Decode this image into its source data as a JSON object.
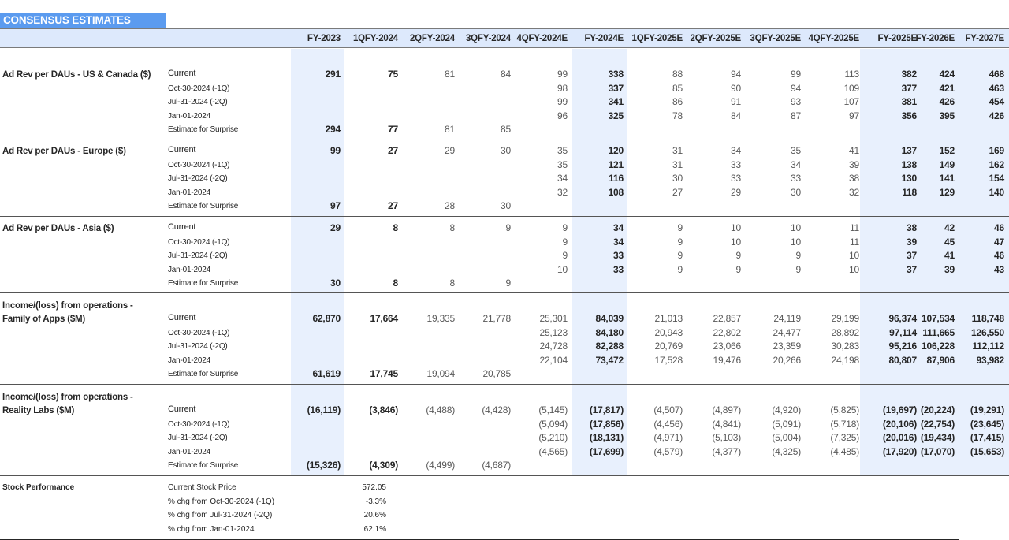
{
  "title": "CONSENSUS ESTIMATES",
  "columns": [
    "FY-2023",
    "1QFY-2024",
    "2QFY-2024",
    "3QFY-2024",
    "4QFY-2024E",
    "FY-2024E",
    "1QFY-2025E",
    "2QFY-2025E",
    "3QFY-2025E",
    "4QFY-2025E",
    "FY-2025E",
    "FY-2026E",
    "FY-2027E"
  ],
  "bold_columns": [
    0,
    1,
    5,
    10,
    11,
    12
  ],
  "row_labels": [
    "Current",
    "Oct-30-2024 (-1Q)",
    "Jul-31-2024 (-2Q)",
    "Jan-01-2024",
    "Estimate for Surprise"
  ],
  "sections": [
    {
      "title_lines": [
        "Ad Rev per DAUs - US & Canada ($)"
      ],
      "rows": [
        [
          "291",
          "75",
          "81",
          "84",
          "99",
          "338",
          "88",
          "94",
          "99",
          "113",
          "382",
          "424",
          "468"
        ],
        [
          "",
          "",
          "",
          "",
          "98",
          "337",
          "85",
          "90",
          "94",
          "109",
          "377",
          "421",
          "463"
        ],
        [
          "",
          "",
          "",
          "",
          "99",
          "341",
          "86",
          "91",
          "93",
          "107",
          "381",
          "426",
          "454"
        ],
        [
          "",
          "",
          "",
          "",
          "96",
          "325",
          "78",
          "84",
          "87",
          "97",
          "356",
          "395",
          "426"
        ],
        [
          "294",
          "77",
          "81",
          "85",
          "",
          "",
          "",
          "",
          "",
          "",
          "",
          "",
          ""
        ]
      ]
    },
    {
      "title_lines": [
        "Ad Rev per DAUs - Europe ($)"
      ],
      "rows": [
        [
          "99",
          "27",
          "29",
          "30",
          "35",
          "120",
          "31",
          "34",
          "35",
          "41",
          "137",
          "152",
          "169"
        ],
        [
          "",
          "",
          "",
          "",
          "35",
          "121",
          "31",
          "33",
          "34",
          "39",
          "138",
          "149",
          "162"
        ],
        [
          "",
          "",
          "",
          "",
          "34",
          "116",
          "30",
          "33",
          "33",
          "38",
          "130",
          "141",
          "154"
        ],
        [
          "",
          "",
          "",
          "",
          "32",
          "108",
          "27",
          "29",
          "30",
          "32",
          "118",
          "129",
          "140"
        ],
        [
          "97",
          "27",
          "28",
          "30",
          "",
          "",
          "",
          "",
          "",
          "",
          "",
          "",
          ""
        ]
      ]
    },
    {
      "title_lines": [
        "Ad Rev per DAUs - Asia ($)"
      ],
      "rows": [
        [
          "29",
          "8",
          "8",
          "9",
          "9",
          "34",
          "9",
          "10",
          "10",
          "11",
          "38",
          "42",
          "46"
        ],
        [
          "",
          "",
          "",
          "",
          "9",
          "34",
          "9",
          "10",
          "10",
          "11",
          "39",
          "45",
          "47"
        ],
        [
          "",
          "",
          "",
          "",
          "9",
          "33",
          "9",
          "9",
          "9",
          "10",
          "37",
          "41",
          "46"
        ],
        [
          "",
          "",
          "",
          "",
          "10",
          "33",
          "9",
          "9",
          "9",
          "10",
          "37",
          "39",
          "43"
        ],
        [
          "30",
          "8",
          "8",
          "9",
          "",
          "",
          "",
          "",
          "",
          "",
          "",
          "",
          ""
        ]
      ]
    },
    {
      "title_lines": [
        "Income/(loss) from operations -",
        "Family of Apps ($M)"
      ],
      "rows": [
        [
          "62,870",
          "17,664",
          "19,335",
          "21,778",
          "25,301",
          "84,039",
          "21,013",
          "22,857",
          "24,119",
          "29,199",
          "96,374",
          "107,534",
          "118,748"
        ],
        [
          "",
          "",
          "",
          "",
          "25,123",
          "84,180",
          "20,943",
          "22,802",
          "24,477",
          "28,892",
          "97,114",
          "111,665",
          "126,550"
        ],
        [
          "",
          "",
          "",
          "",
          "24,728",
          "82,288",
          "20,769",
          "23,066",
          "23,359",
          "30,283",
          "95,216",
          "106,228",
          "112,112"
        ],
        [
          "",
          "",
          "",
          "",
          "22,104",
          "73,472",
          "17,528",
          "19,476",
          "20,266",
          "24,198",
          "80,807",
          "87,906",
          "93,982"
        ],
        [
          "61,619",
          "17,745",
          "19,094",
          "20,785",
          "",
          "",
          "",
          "",
          "",
          "",
          "",
          "",
          ""
        ]
      ]
    },
    {
      "title_lines": [
        "Income/(loss) from operations -",
        "Reality Labs ($M)"
      ],
      "rows": [
        [
          "(16,119)",
          "(3,846)",
          "(4,488)",
          "(4,428)",
          "(5,145)",
          "(17,817)",
          "(4,507)",
          "(4,897)",
          "(4,920)",
          "(5,825)",
          "(19,697)",
          "(20,224)",
          "(19,291)"
        ],
        [
          "",
          "",
          "",
          "",
          "(5,094)",
          "(17,856)",
          "(4,456)",
          "(4,841)",
          "(5,091)",
          "(5,718)",
          "(20,106)",
          "(22,754)",
          "(23,645)"
        ],
        [
          "",
          "",
          "",
          "",
          "(5,210)",
          "(18,131)",
          "(4,971)",
          "(5,103)",
          "(5,004)",
          "(7,325)",
          "(20,016)",
          "(19,434)",
          "(17,415)"
        ],
        [
          "",
          "",
          "",
          "",
          "(4,565)",
          "(17,699)",
          "(4,579)",
          "(4,377)",
          "(4,325)",
          "(4,485)",
          "(17,920)",
          "(17,070)",
          "(15,653)"
        ],
        [
          "(15,326)",
          "(4,309)",
          "(4,499)",
          "(4,687)",
          "",
          "",
          "",
          "",
          "",
          "",
          "",
          "",
          ""
        ]
      ]
    }
  ],
  "stock": {
    "title": "Stock Performance",
    "rows": [
      {
        "label": "Current Stock Price",
        "value": "572.05"
      },
      {
        "label": "% chg from Oct-30-2024 (-1Q)",
        "value": "-3.3%"
      },
      {
        "label": "% chg from Jul-31-2024 (-2Q)",
        "value": "20.6%"
      },
      {
        "label": "% chg from Jan-01-2024",
        "value": "62.1%"
      }
    ]
  },
  "colors": {
    "title_bg": "#5b9bef",
    "header_bg": "#dde9fc",
    "shade_bg": "#e8f0fd",
    "text": "#262626",
    "muted_text": "#595959"
  }
}
